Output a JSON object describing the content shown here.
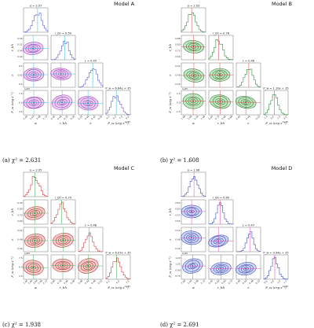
{
  "chart_data": [
    {
      "type": "corner",
      "title": "Model A",
      "caption": "(a) χ² = 2.631",
      "parameters": [
        "α",
        "r_bh",
        "ε",
        "P_w (erg s⁻¹)"
      ],
      "param_keys": [
        "a",
        "r",
        "e",
        "p"
      ],
      "marginal_labels": [
        "α = 2.07",
        "r_bh = 0.50",
        "ε = 0.45",
        "P_w = 6.64e + 35"
      ],
      "xlabels": [
        "α",
        "r_bh",
        "ε",
        "P_w (erg s⁻¹)"
      ],
      "ylabels": [
        "r_bh",
        "ε",
        "P_w (erg s⁻¹)"
      ],
      "colors": {
        "hist": "#5b5bd6",
        "contour": "#9b2fae",
        "fill": "#d7a3e6",
        "truth": "#22b5e6"
      },
      "estimates": {
        "a": 2.07,
        "r": 0.5,
        "e": 0.45,
        "p": 6.64
      },
      "x_ticks": {
        "a": [
          "2.00",
          "2.04",
          "2.08",
          "2.12"
        ],
        "r": [
          "0.44",
          "0.48",
          "0.52",
          "0.56"
        ],
        "e": [
          "0.35",
          "0.40",
          "0.45",
          "0.50"
        ],
        "p": [
          "4.5",
          "6.0",
          "7.5",
          "9.0"
        ]
      },
      "y_ticks": {
        "r": [
          "0.56",
          "0.52",
          "0.48",
          "0.44"
        ],
        "e": [
          "0.5",
          "0.45",
          "0.4"
        ],
        "p": [
          "7.5",
          "6.0",
          "4.5"
        ]
      },
      "p_scale": "1e35"
    },
    {
      "type": "corner",
      "title": "Model B",
      "caption": "(b) χ² = 1.608",
      "parameters": [
        "α",
        "r_bh",
        "ε",
        "P_w (erg s⁻¹)"
      ],
      "param_keys": [
        "a",
        "r",
        "e",
        "p"
      ],
      "marginal_labels": [
        "α = 2.03",
        "r_bh = 0.76",
        "ε = 0.48",
        "P_w = 1.10e + 35"
      ],
      "xlabels": [
        "α",
        "r_bh",
        "ε",
        "P_w (erg s⁻¹)"
      ],
      "ylabels": [
        "r_bh",
        "ε",
        "P_w (erg s⁻¹)"
      ],
      "colors": {
        "hist": "#2e8b3e",
        "contour": "#1f6b2a",
        "fill": "#8fd48f",
        "truth": "#e23a3a"
      },
      "estimates": {
        "a": 2.03,
        "r": 0.76,
        "e": 0.48,
        "p": 1.1
      },
      "x_ticks": {
        "a": [
          "1.98",
          "2.00",
          "2.04",
          "2.08"
        ],
        "r": [
          "0.64",
          "0.72",
          "0.80",
          "0.88"
        ],
        "e": [
          "0.44",
          "0.48",
          "0.52"
        ],
        "p": [
          "-1.5",
          "0.0",
          "1.5",
          "3.0"
        ]
      },
      "y_ticks": {
        "r": [
          "0.88",
          "0.80",
          "0.72",
          "0.64"
        ],
        "e": [
          "0.52",
          "0.48",
          "0.44"
        ],
        "p": [
          "1.5",
          "0.0",
          "-1.5"
        ]
      },
      "p_scale": "1e35"
    },
    {
      "type": "corner",
      "title": "Model C",
      "caption": "(c) χ² = 1.938",
      "parameters": [
        "α",
        "r_bh",
        "ε",
        "P_w (erg s⁻¹)"
      ],
      "param_keys": [
        "a",
        "r",
        "e",
        "p"
      ],
      "marginal_labels": [
        "α = 2.05",
        "r_bh = 0.79",
        "ε = 0.48",
        "P_w = 6.07e + 35"
      ],
      "xlabels": [
        "α",
        "r_bh",
        "ε",
        "P_w (erg s⁻¹)"
      ],
      "ylabels": [
        "r_bh",
        "ε",
        "P_w (erg s⁻¹)"
      ],
      "colors": {
        "hist": "#d63a3a",
        "contour": "#b01d1d",
        "fill": "#f1a3a3",
        "truth": "#2fb24a"
      },
      "estimates": {
        "a": 2.05,
        "r": 0.79,
        "e": 0.48,
        "p": 6.07
      },
      "x_ticks": {
        "a": [
          "1.96",
          "2.00",
          "2.04",
          "2.08",
          "2.12"
        ],
        "r": [
          "0.60",
          "0.70",
          "0.80",
          "0.90"
        ],
        "e": [
          "0.40",
          "0.44",
          "0.48",
          "0.52"
        ],
        "p": [
          "4.5",
          "6.0",
          "7.5"
        ]
      },
      "y_ticks": {
        "r": [
          "0.90",
          "0.80",
          "0.70",
          "0.60"
        ],
        "e": [
          "0.52",
          "0.48",
          "0.44"
        ],
        "p": [
          "7.5",
          "6.0",
          "4.5"
        ]
      },
      "p_scale": "1e35"
    },
    {
      "type": "corner",
      "title": "Model D",
      "caption": "(d) χ² = 2.691",
      "parameters": [
        "α",
        "r_bh",
        "ε",
        "P_w (erg s⁻¹)"
      ],
      "param_keys": [
        "a",
        "r",
        "e",
        "p"
      ],
      "marginal_labels": [
        "α = 2.06",
        "r_bh = 0.60",
        "ε = 0.47",
        "P_w = 9.94e + 35"
      ],
      "xlabels": [
        "α",
        "r_bh",
        "ε",
        "P_w (erg s⁻¹)"
      ],
      "ylabels": [
        "r_bh",
        "ε",
        "P_w (erg s⁻¹)"
      ],
      "colors": {
        "hist": "#3d4fc4",
        "contour": "#2434a8",
        "fill": "#a6b6ef",
        "truth": "#e23ac0"
      },
      "estimates": {
        "a": 2.06,
        "r": 0.6,
        "e": 0.47,
        "p": 9.94
      },
      "x_ticks": {
        "a": [
          "2.00",
          "2.04",
          "2.08",
          "2.12"
        ],
        "r": [
          "0.45",
          "0.54",
          "0.63",
          "0.72"
        ],
        "e": [
          "0.40",
          "0.44",
          "0.48",
          "0.52"
        ],
        "p": [
          "0.6",
          "0.8",
          "1.0",
          "1.2"
        ]
      },
      "y_ticks": {
        "r": [
          "0.63",
          "0.60",
          "0.57",
          "0.54"
        ],
        "e": [
          "0.52",
          "0.48",
          "0.44"
        ],
        "p": [
          "1.20",
          "1.05",
          "0.90",
          "0.75"
        ]
      },
      "p_scale": "1e36"
    }
  ]
}
